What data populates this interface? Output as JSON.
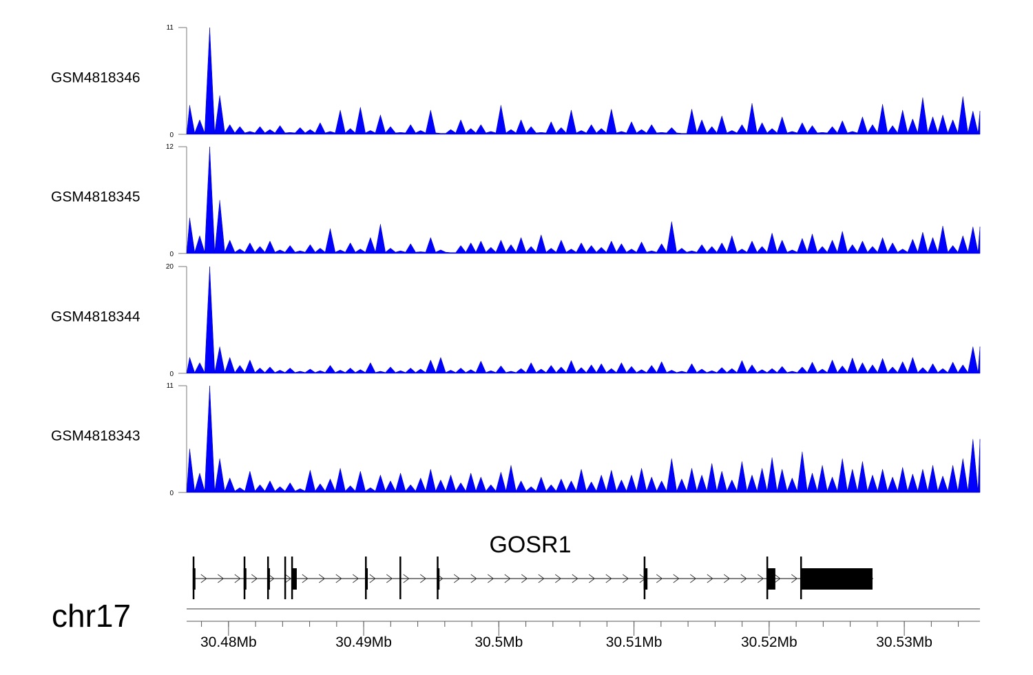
{
  "chart_data": {
    "type": "area",
    "title": "",
    "x_range_mb": [
      30.4769,
      30.5356
    ],
    "chromosome": "chr17",
    "xaxis": {
      "tick_labels": [
        "30.48Mb",
        "30.49Mb",
        "30.5Mb",
        "30.51Mb",
        "30.52Mb",
        "30.53Mb"
      ],
      "tick_values_mb": [
        30.48,
        30.49,
        30.5,
        30.51,
        30.52,
        30.53
      ],
      "minor_step_mb": 0.002
    },
    "color": "#0000ff",
    "series": [
      {
        "name": "GSM4818346",
        "ylim": [
          0,
          11
        ],
        "ytick_labels": [
          "0",
          "11"
        ],
        "values": [
          3,
          1.5,
          11,
          4,
          1,
          0.8,
          0.3,
          0.8,
          0.5,
          0.9,
          0.2,
          0.7,
          0.5,
          1.2,
          0.3,
          2.5,
          0.6,
          2.8,
          0.4,
          2,
          0.8,
          0.2,
          1.0,
          0.4,
          2.5,
          0.1,
          0.5,
          1.5,
          0.6,
          1,
          0.3,
          3,
          0.5,
          1.5,
          0.8,
          0.2,
          1.3,
          0.7,
          2.5,
          0.4,
          1,
          0.6,
          2.6,
          0.3,
          1.3,
          0.5,
          1,
          0.2,
          0.7,
          0.1,
          2.6,
          1.5,
          0.8,
          1.9,
          0.4,
          1,
          3.2,
          1.2,
          0.6,
          1.8,
          0.3,
          1.2,
          0.9,
          0.2,
          0.8,
          1.4,
          0.3,
          1.8,
          1,
          3.1,
          0.9,
          2.5,
          1.6,
          3.8,
          1.8,
          2,
          1.5,
          3.9,
          2.4
        ]
      },
      {
        "name": "GSM4818345",
        "ylim": [
          0,
          12
        ],
        "ytick_labels": [
          "0",
          "12"
        ],
        "values": [
          4,
          2,
          12,
          6,
          1.5,
          0.5,
          1.2,
          0.8,
          1.4,
          0.4,
          0.9,
          0.3,
          1,
          0.6,
          2.8,
          0.4,
          1.2,
          0.5,
          1.8,
          3.3,
          0.6,
          0.3,
          1.1,
          0.2,
          1.8,
          0.4,
          0.1,
          0.9,
          1.2,
          1.4,
          0.7,
          1.5,
          1,
          1.8,
          0.8,
          2.1,
          0.6,
          1.5,
          0.5,
          1.2,
          0.9,
          0.7,
          1.4,
          1.1,
          0.5,
          1.3,
          0.3,
          1.1,
          3.6,
          0.6,
          0.3,
          1,
          0.8,
          1.2,
          2,
          0.5,
          1.4,
          0.8,
          2.3,
          1.5,
          0.4,
          1.7,
          2.2,
          0.8,
          1.5,
          2.5,
          1,
          1.4,
          0.8,
          1.8,
          1.2,
          0.5,
          1.6,
          2.4,
          1.8,
          3.1,
          0.9,
          2,
          3
        ]
      },
      {
        "name": "GSM4818344",
        "ylim": [
          0,
          20
        ],
        "ytick_labels": [
          "0",
          "20"
        ],
        "values": [
          3,
          2,
          20,
          5,
          3,
          1.5,
          2.5,
          1,
          1.2,
          0.6,
          1,
          0.4,
          0.8,
          0.5,
          1.5,
          0.6,
          1,
          0.7,
          2,
          0.4,
          1.2,
          0.5,
          1,
          0.8,
          2.5,
          3,
          0.6,
          1,
          0.7,
          2.3,
          0.5,
          1.4,
          0.4,
          0.9,
          2,
          0.8,
          1.5,
          1.2,
          2.4,
          1.1,
          1.6,
          1.8,
          0.9,
          2,
          1.3,
          0.7,
          1.5,
          2.2,
          0.6,
          0.4,
          1.8,
          0.8,
          0.5,
          1.1,
          0.9,
          2.4,
          1.6,
          0.7,
          0.9,
          1.3,
          0.4,
          1.2,
          2.1,
          0.8,
          2.5,
          1.4,
          2.9,
          2,
          1.6,
          2.8,
          1.2,
          2.2,
          3,
          1.1,
          1.8,
          0.9,
          2.1,
          1.6,
          5
        ]
      },
      {
        "name": "GSM4818343",
        "ylim": [
          0,
          11
        ],
        "ytick_labels": [
          "0",
          "11"
        ],
        "values": [
          4.5,
          2,
          11,
          3.5,
          1.5,
          0.5,
          2.2,
          0.8,
          1.2,
          0.6,
          1,
          0.4,
          2.3,
          0.9,
          1.4,
          2.5,
          0.7,
          2.2,
          0.5,
          1.8,
          1.2,
          2,
          0.8,
          1.5,
          2.4,
          1.3,
          1.8,
          1,
          2,
          1.6,
          0.8,
          2.1,
          2.8,
          1.2,
          0.6,
          1.6,
          0.8,
          1.4,
          1.2,
          2.4,
          1.1,
          1.8,
          2.3,
          1.3,
          1.8,
          2.5,
          1.6,
          1.2,
          3.5,
          1.4,
          2.5,
          1.8,
          3,
          2.2,
          1.3,
          3.2,
          1.8,
          2.5,
          3.6,
          2.4,
          1.5,
          4.2,
          2,
          2.8,
          1.6,
          3.5,
          2.4,
          3.2,
          1.8,
          2.4,
          1.6,
          2.6,
          1.9,
          2.4,
          2.8,
          1.7,
          2.8,
          3.5,
          5.5
        ]
      }
    ],
    "gene": {
      "name": "GOSR1",
      "strand": "+",
      "tx_start_mb": 30.4774,
      "tx_end_mb": 30.5277,
      "tall_marks_mb": [
        30.4774,
        30.48117,
        30.48291,
        30.48418,
        30.48469,
        30.49015,
        30.4927,
        30.49546,
        30.51077,
        30.51985,
        30.52235
      ],
      "blocks_mb": [
        [
          30.48469,
          30.48505
        ],
        [
          30.51985,
          30.52046
        ],
        [
          30.52235,
          30.52765
        ]
      ],
      "small_blocks_mb": [
        [
          30.4774,
          30.4775
        ],
        [
          30.48117,
          30.48127
        ],
        [
          30.48291,
          30.48301
        ],
        [
          30.49015,
          30.4903
        ],
        [
          30.49546,
          30.49556
        ],
        [
          30.51077,
          30.51105
        ]
      ]
    }
  }
}
